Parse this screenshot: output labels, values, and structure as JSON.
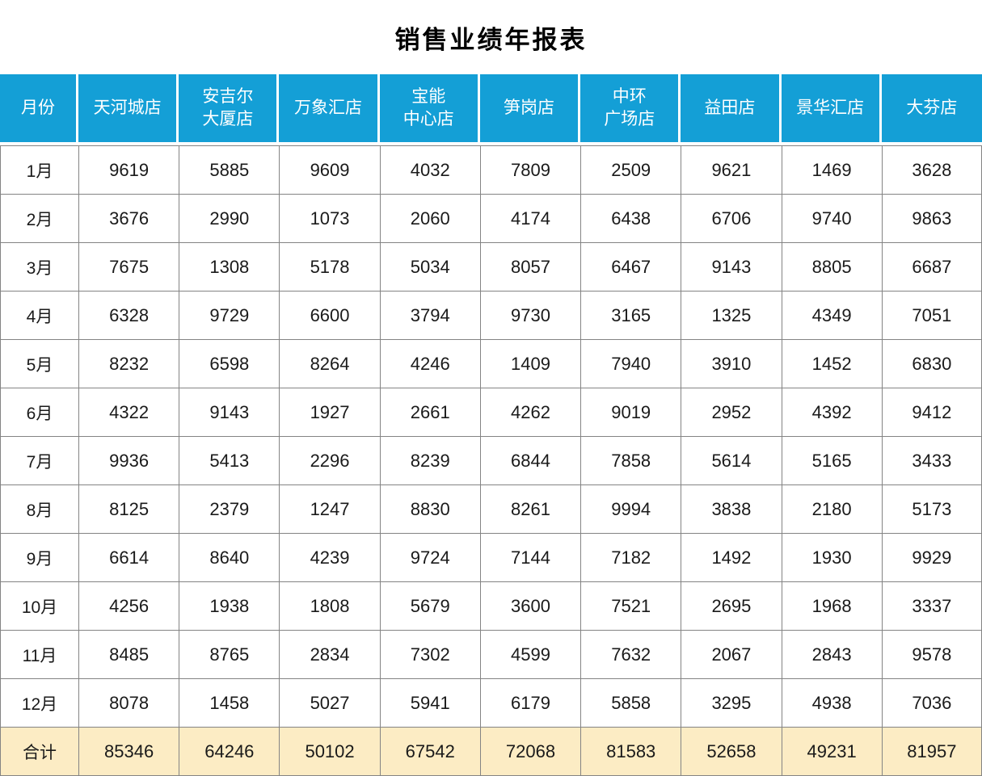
{
  "title": "销售业绩年报表",
  "colors": {
    "header_bg": "#149FD6",
    "header_text": "#FFFFFF",
    "total_bg": "#FCECC4",
    "border": "#848484",
    "body_text": "#1A1A1A"
  },
  "table": {
    "columns": [
      "月份",
      "天河城店",
      "安吉尔\n大厦店",
      "万象汇店",
      "宝能\n中心店",
      "笋岗店",
      "中环\n广场店",
      "益田店",
      "景华汇店",
      "大芬店"
    ],
    "rows": [
      {
        "label": "1月",
        "values": [
          9619,
          5885,
          9609,
          4032,
          7809,
          2509,
          9621,
          1469,
          3628
        ]
      },
      {
        "label": "2月",
        "values": [
          3676,
          2990,
          1073,
          2060,
          4174,
          6438,
          6706,
          9740,
          9863
        ]
      },
      {
        "label": "3月",
        "values": [
          7675,
          1308,
          5178,
          5034,
          8057,
          6467,
          9143,
          8805,
          6687
        ]
      },
      {
        "label": "4月",
        "values": [
          6328,
          9729,
          6600,
          3794,
          9730,
          3165,
          1325,
          4349,
          7051
        ]
      },
      {
        "label": "5月",
        "values": [
          8232,
          6598,
          8264,
          4246,
          1409,
          7940,
          3910,
          1452,
          6830
        ]
      },
      {
        "label": "6月",
        "values": [
          4322,
          9143,
          1927,
          2661,
          4262,
          9019,
          2952,
          4392,
          9412
        ]
      },
      {
        "label": "7月",
        "values": [
          9936,
          5413,
          2296,
          8239,
          6844,
          7858,
          5614,
          5165,
          3433
        ]
      },
      {
        "label": "8月",
        "values": [
          8125,
          2379,
          1247,
          8830,
          8261,
          9994,
          3838,
          2180,
          5173
        ]
      },
      {
        "label": "9月",
        "values": [
          6614,
          8640,
          4239,
          9724,
          7144,
          7182,
          1492,
          1930,
          9929
        ]
      },
      {
        "label": "10月",
        "values": [
          4256,
          1938,
          1808,
          5679,
          3600,
          7521,
          2695,
          1968,
          3337
        ]
      },
      {
        "label": "11月",
        "values": [
          8485,
          8765,
          2834,
          7302,
          4599,
          7632,
          2067,
          2843,
          9578
        ]
      },
      {
        "label": "12月",
        "values": [
          8078,
          1458,
          5027,
          5941,
          6179,
          5858,
          3295,
          4938,
          7036
        ]
      }
    ],
    "total": {
      "label": "合计",
      "values": [
        85346,
        64246,
        50102,
        67542,
        72068,
        81583,
        52658,
        49231,
        81957
      ]
    }
  }
}
